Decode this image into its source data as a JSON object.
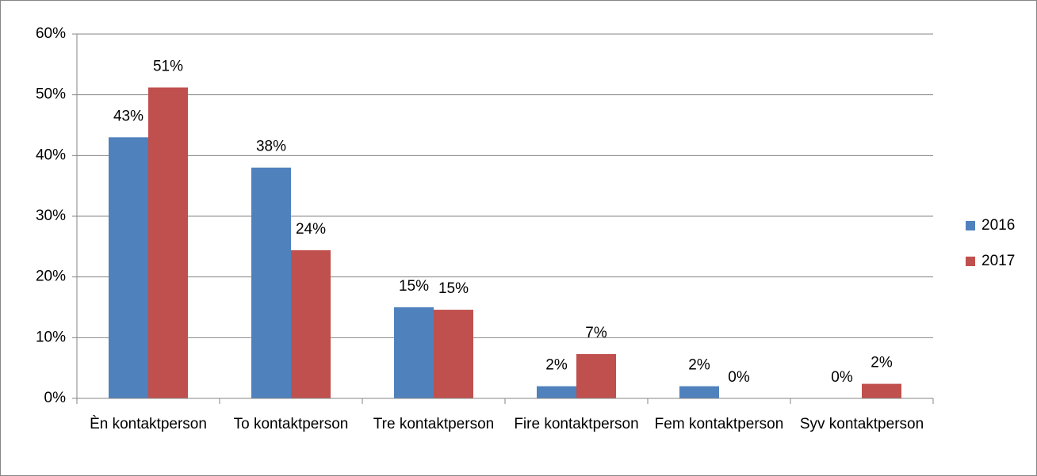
{
  "chart_data": {
    "type": "bar",
    "categories": [
      "Èn kontaktperson",
      "To kontaktperson",
      "Tre kontaktperson",
      "Fire kontaktperson",
      "Fem kontaktperson",
      "Syv kontaktperson"
    ],
    "series": [
      {
        "name": "2016",
        "color": "#4f81bd",
        "values": [
          43,
          38,
          15,
          2,
          2,
          0
        ],
        "value_labels": [
          "43%",
          "38%",
          "15%",
          "2%",
          "2%",
          "0%"
        ]
      },
      {
        "name": "2017",
        "color": "#c0504d",
        "values": [
          51.2,
          24.4,
          14.6,
          7.3,
          0,
          2.4
        ],
        "value_labels": [
          "51%",
          "24%",
          "15%",
          "7%",
          "0%",
          "2%"
        ]
      }
    ],
    "ylim": [
      0,
      60
    ],
    "yticks": [
      {
        "value": 0,
        "label": "0%"
      },
      {
        "value": 10,
        "label": "10%"
      },
      {
        "value": 20,
        "label": "20%"
      },
      {
        "value": 30,
        "label": "30%"
      },
      {
        "value": 40,
        "label": "40%"
      },
      {
        "value": 50,
        "label": "50%"
      },
      {
        "value": 60,
        "label": "60%"
      }
    ],
    "grid": true,
    "legend": "right"
  }
}
